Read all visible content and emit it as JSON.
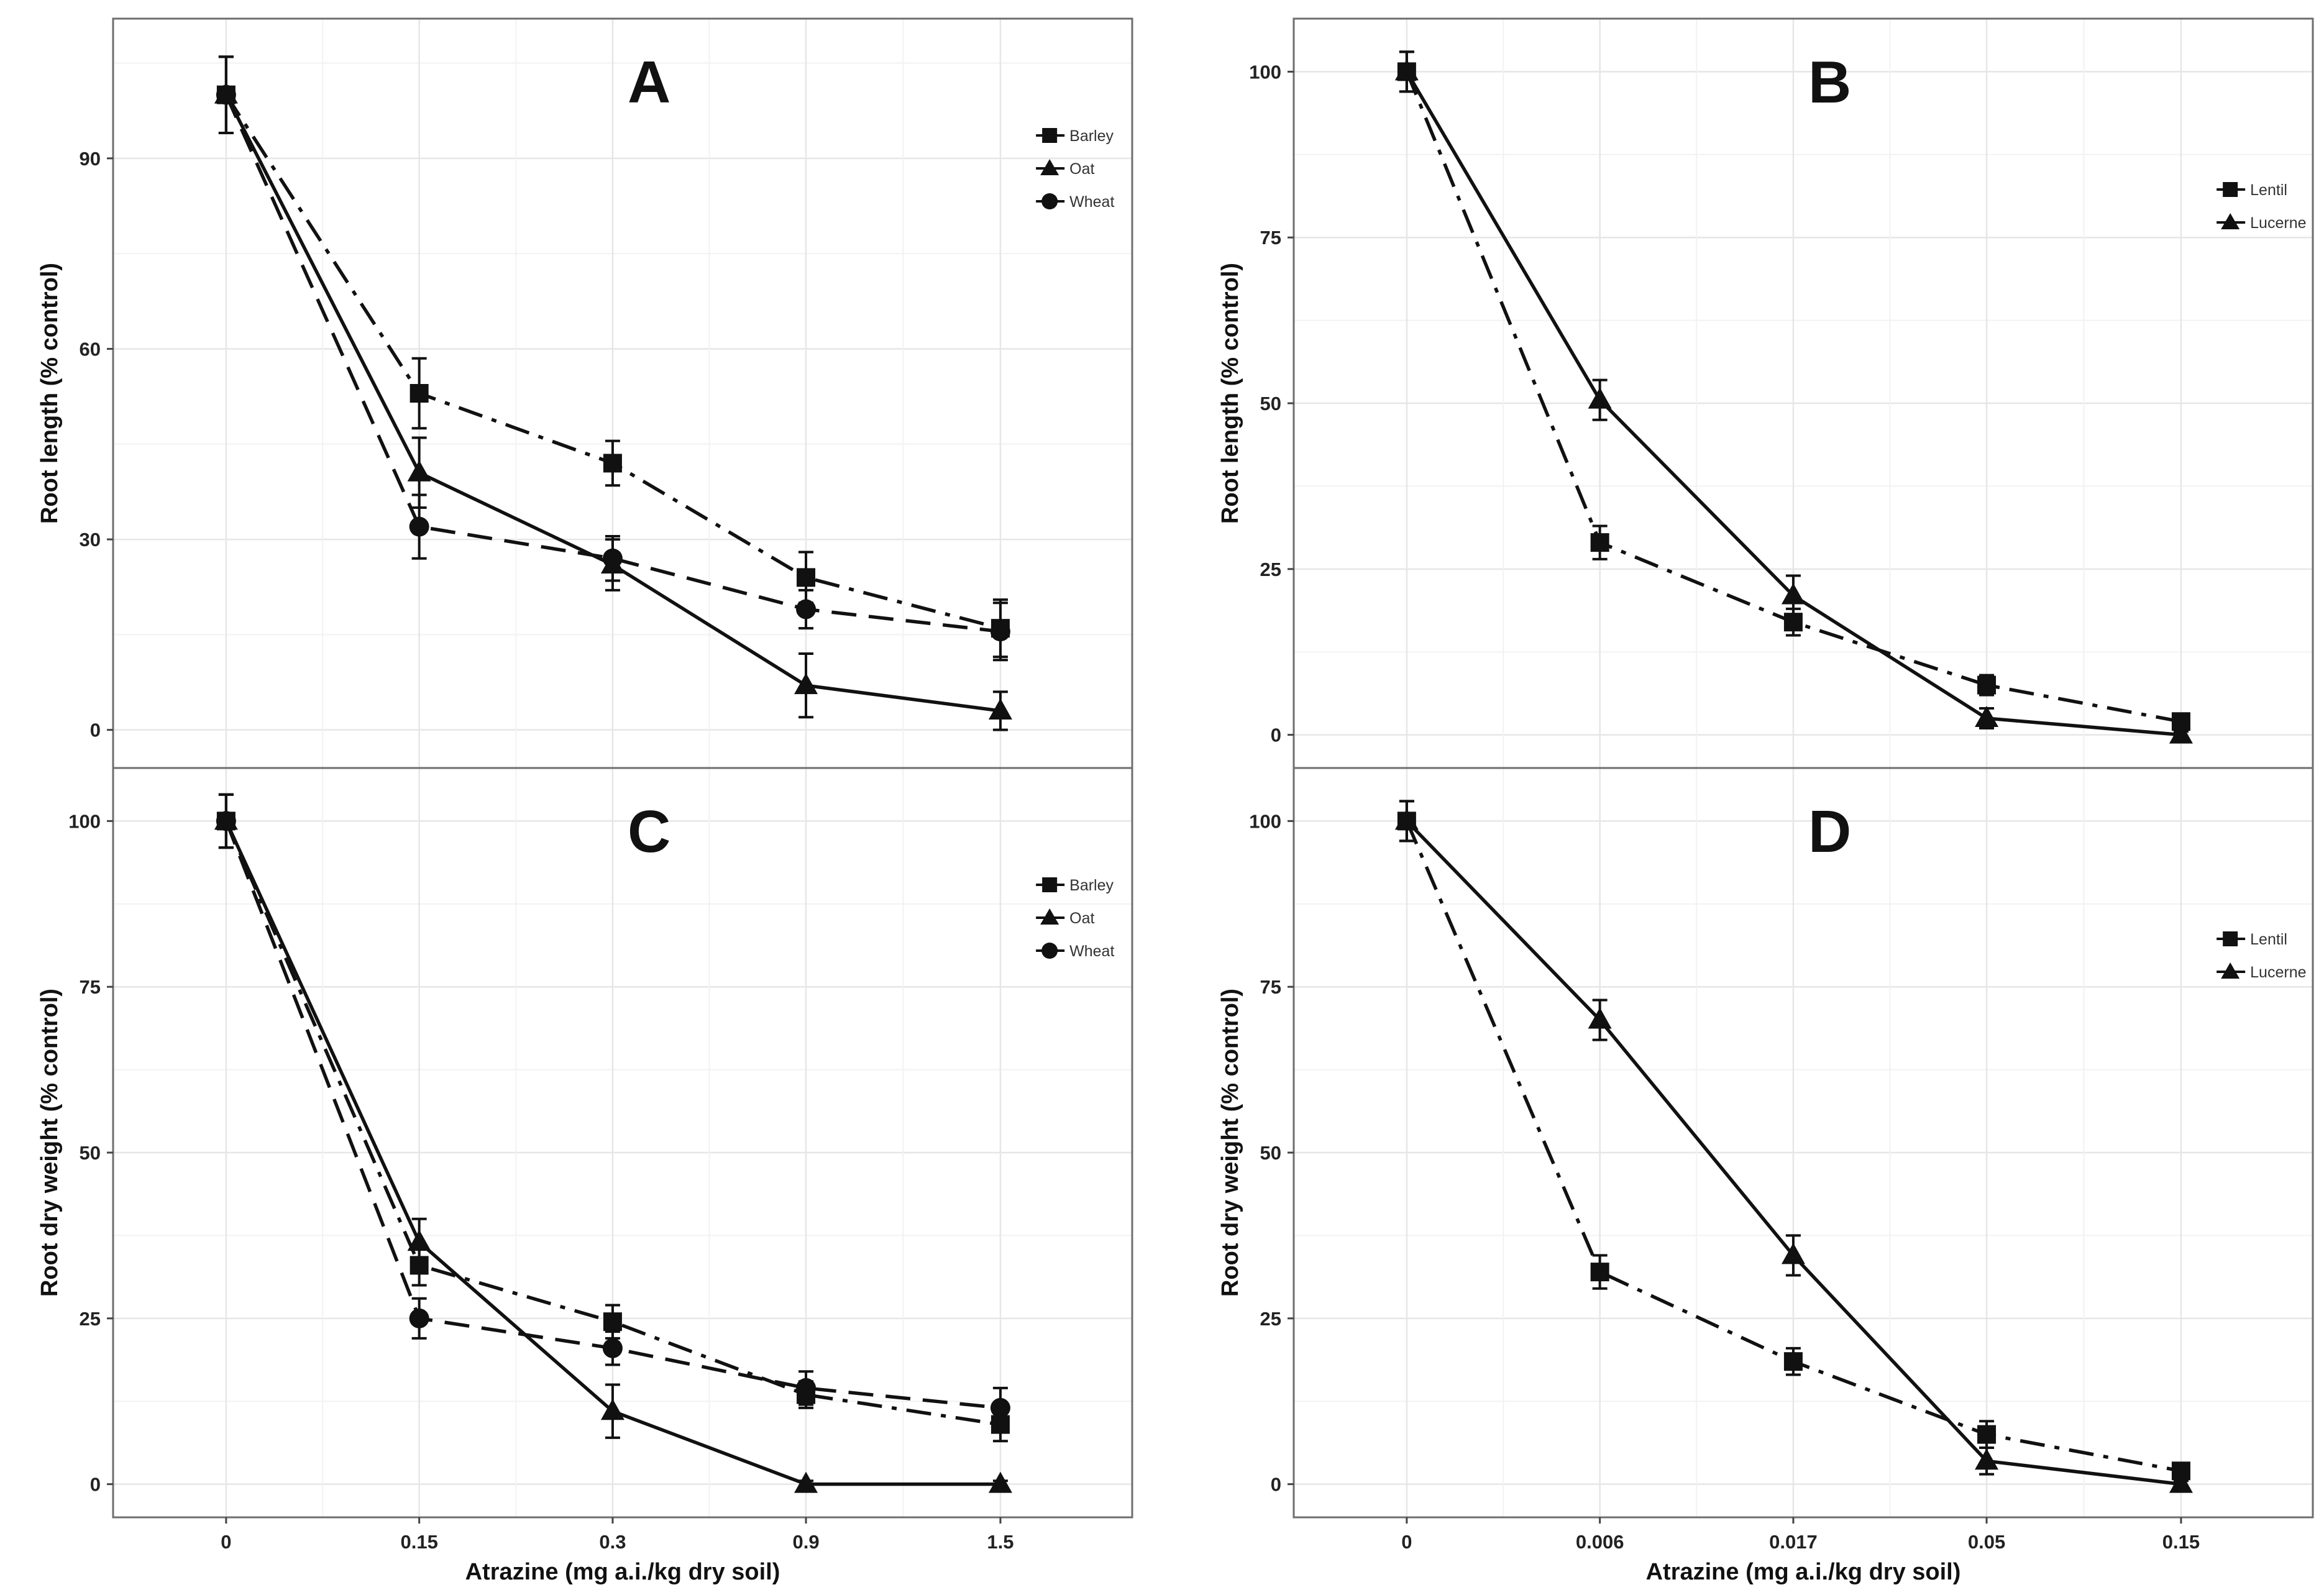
{
  "chart_data": [
    {
      "id": "A",
      "type": "line",
      "panel_label": "A",
      "title": "",
      "xlabel": "",
      "ylabel": "Root length (% control)",
      "categories": [
        "0",
        "0.15",
        "0.3",
        "0.9",
        "1.5"
      ],
      "yticks": [
        0,
        30,
        60,
        90
      ],
      "ylim": [
        -6,
        112
      ],
      "grid": true,
      "legend_placement": "top-right",
      "series": [
        {
          "name": "Barley",
          "marker": "square",
          "line": "dotdash",
          "values": [
            100,
            53,
            42,
            24,
            16
          ],
          "errors": [
            6,
            5.5,
            3.5,
            4,
            4.5
          ]
        },
        {
          "name": "Oat",
          "marker": "triangle",
          "line": "solid",
          "values": [
            100,
            40.5,
            26,
            7,
            3
          ],
          "errors": [
            6,
            5.5,
            4,
            5,
            3
          ]
        },
        {
          "name": "Wheat",
          "marker": "circle",
          "line": "longdash",
          "values": [
            100,
            32,
            27,
            19,
            15.5
          ],
          "errors": [
            6,
            5,
            3.5,
            3,
            4.5
          ]
        }
      ]
    },
    {
      "id": "B",
      "type": "line",
      "panel_label": "B",
      "title": "",
      "xlabel": "",
      "ylabel": "Root length (% control)",
      "categories": [
        "0",
        "0.006",
        "0.017",
        "0.05",
        "0.15"
      ],
      "yticks": [
        0,
        25,
        50,
        75,
        100
      ],
      "ylim": [
        -5,
        108
      ],
      "grid": true,
      "legend_placement": "top-right",
      "series": [
        {
          "name": "Lentil",
          "marker": "square",
          "line": "dotdash",
          "values": [
            100,
            29,
            17,
            7.5,
            2
          ],
          "errors": [
            3,
            2.5,
            2,
            1.5,
            1
          ]
        },
        {
          "name": "Lucerne",
          "marker": "triangle",
          "line": "solid",
          "values": [
            100,
            50.5,
            21,
            2.5,
            0
          ],
          "errors": [
            3,
            3,
            3,
            1.5,
            0.5
          ]
        }
      ]
    },
    {
      "id": "C",
      "type": "line",
      "panel_label": "C",
      "title": "",
      "xlabel": "Atrazine (mg a.i./kg dry soil)",
      "ylabel": "Root dry weight (% control)",
      "categories": [
        "0",
        "0.15",
        "0.3",
        "0.9",
        "1.5"
      ],
      "yticks": [
        0,
        25,
        50,
        75,
        100
      ],
      "ylim": [
        -5,
        108
      ],
      "grid": true,
      "legend_placement": "top-right",
      "series": [
        {
          "name": "Barley",
          "marker": "square",
          "line": "dotdash",
          "values": [
            100,
            33,
            24.5,
            13.5,
            9
          ],
          "errors": [
            4,
            3,
            2.5,
            2,
            2.5
          ]
        },
        {
          "name": "Oat",
          "marker": "triangle",
          "line": "solid",
          "values": [
            100,
            36.5,
            11,
            0,
            0
          ],
          "errors": [
            4,
            3.5,
            4,
            0.5,
            0.5
          ]
        },
        {
          "name": "Wheat",
          "marker": "circle",
          "line": "longdash",
          "values": [
            100,
            25,
            20.5,
            14.5,
            11.5
          ],
          "errors": [
            4,
            3,
            2.5,
            2.5,
            3
          ]
        }
      ]
    },
    {
      "id": "D",
      "type": "line",
      "panel_label": "D",
      "title": "",
      "xlabel": "Atrazine (mg a.i./kg dry soil)",
      "ylabel": "Root dry weight (% control)",
      "categories": [
        "0",
        "0.006",
        "0.017",
        "0.05",
        "0.15"
      ],
      "yticks": [
        0,
        25,
        50,
        75,
        100
      ],
      "ylim": [
        -5,
        108
      ],
      "grid": true,
      "legend_placement": "top-right",
      "series": [
        {
          "name": "Lentil",
          "marker": "square",
          "line": "dotdash",
          "values": [
            100,
            32,
            18.5,
            7.5,
            2
          ],
          "errors": [
            3,
            2.5,
            2,
            2,
            1
          ]
        },
        {
          "name": "Lucerne",
          "marker": "triangle",
          "line": "solid",
          "values": [
            100,
            70,
            34.5,
            3.5,
            0
          ],
          "errors": [
            3,
            3,
            3,
            2,
            0.5
          ]
        }
      ]
    }
  ],
  "legend_labels": {
    "barley": "Barley",
    "oat": "Oat",
    "wheat": "Wheat",
    "lentil": "Lentil",
    "lucerne": "Lucerne"
  },
  "colors": {
    "line": "#111111",
    "grid": "#e6e6e6",
    "frame": "#6e6e6e",
    "background": "#ffffff"
  }
}
